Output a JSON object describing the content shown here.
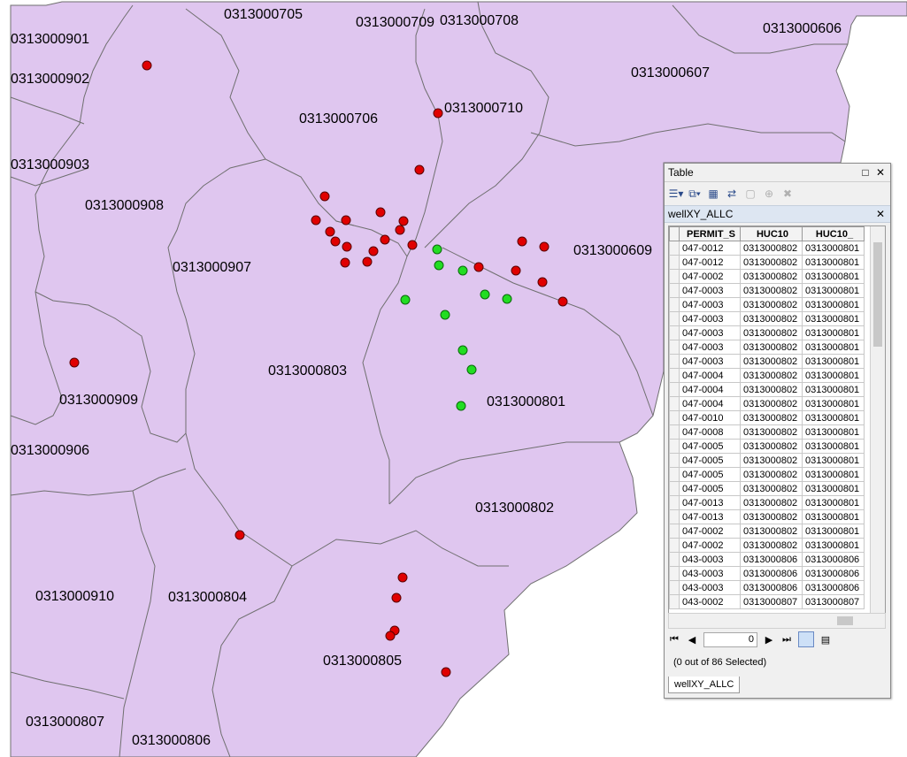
{
  "map": {
    "huc_labels": [
      "0313000705",
      "0313000709",
      "0313000708",
      "0313000901",
      "0313000606",
      "0313000902",
      "0313000607",
      "0313000710",
      "0313000706",
      "0313000903",
      "0313000908",
      "0313000609",
      "0313000907",
      "0313000803",
      "0313000909",
      "0313000801",
      "0313000906",
      "0313000802",
      "0313000910",
      "0313000804",
      "0313000805",
      "0313000807",
      "0313000806"
    ],
    "colors": {
      "polygon_fill": "#dfc6ef",
      "boundary": "#6f6f6f",
      "well_red": "#e00000",
      "well_green": "#22dd22"
    }
  },
  "table_window": {
    "title": "Table",
    "layer_name": "wellXY_ALLC",
    "columns": [
      "PERMIT_S",
      "HUC10",
      "HUC10_"
    ],
    "rows": [
      [
        "047-0012",
        "0313000802",
        "0313000801"
      ],
      [
        "047-0012",
        "0313000802",
        "0313000801"
      ],
      [
        "047-0002",
        "0313000802",
        "0313000801"
      ],
      [
        "047-0003",
        "0313000802",
        "0313000801"
      ],
      [
        "047-0003",
        "0313000802",
        "0313000801"
      ],
      [
        "047-0003",
        "0313000802",
        "0313000801"
      ],
      [
        "047-0003",
        "0313000802",
        "0313000801"
      ],
      [
        "047-0003",
        "0313000802",
        "0313000801"
      ],
      [
        "047-0003",
        "0313000802",
        "0313000801"
      ],
      [
        "047-0004",
        "0313000802",
        "0313000801"
      ],
      [
        "047-0004",
        "0313000802",
        "0313000801"
      ],
      [
        "047-0004",
        "0313000802",
        "0313000801"
      ],
      [
        "047-0010",
        "0313000802",
        "0313000801"
      ],
      [
        "047-0008",
        "0313000802",
        "0313000801"
      ],
      [
        "047-0005",
        "0313000802",
        "0313000801"
      ],
      [
        "047-0005",
        "0313000802",
        "0313000801"
      ],
      [
        "047-0005",
        "0313000802",
        "0313000801"
      ],
      [
        "047-0005",
        "0313000802",
        "0313000801"
      ],
      [
        "047-0013",
        "0313000802",
        "0313000801"
      ],
      [
        "047-0013",
        "0313000802",
        "0313000801"
      ],
      [
        "047-0002",
        "0313000802",
        "0313000801"
      ],
      [
        "047-0002",
        "0313000802",
        "0313000801"
      ],
      [
        "043-0003",
        "0313000806",
        "0313000806"
      ],
      [
        "043-0003",
        "0313000806",
        "0313000806"
      ],
      [
        "043-0003",
        "0313000806",
        "0313000806"
      ],
      [
        "043-0002",
        "0313000807",
        "0313000807"
      ]
    ],
    "record_index": "0",
    "selection_status": "(0 out of 86 Selected)",
    "bottom_tab": "wellXY_ALLC"
  }
}
